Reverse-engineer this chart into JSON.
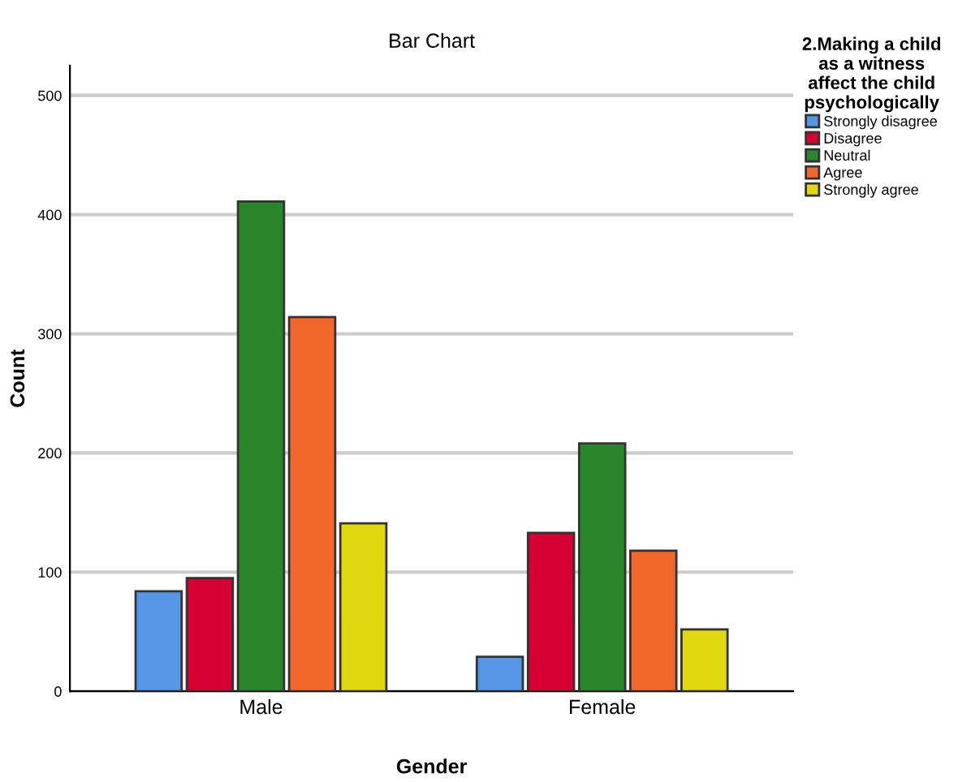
{
  "chart_data": {
    "type": "bar",
    "title": "Bar Chart",
    "xlabel": "Gender",
    "ylabel": "Count",
    "legend_title": "2.Making a child\nas a witness\naffect the child\npsychologically",
    "categories": [
      "Male",
      "Female"
    ],
    "series": [
      {
        "name": "Strongly disagree",
        "color": "#5596e6",
        "values": [
          84,
          29
        ]
      },
      {
        "name": "Disagree",
        "color": "#d60032",
        "values": [
          95,
          133
        ]
      },
      {
        "name": "Neutral",
        "color": "#2a862a",
        "values": [
          411,
          208
        ]
      },
      {
        "name": "Agree",
        "color": "#f2682a",
        "values": [
          314,
          118
        ]
      },
      {
        "name": "Strongly agree",
        "color": "#e2d810",
        "values": [
          141,
          52
        ]
      }
    ],
    "ylim": [
      0,
      525
    ],
    "yticks": [
      0,
      100,
      200,
      300,
      400,
      500
    ],
    "grid": "y",
    "legend": "top right"
  }
}
